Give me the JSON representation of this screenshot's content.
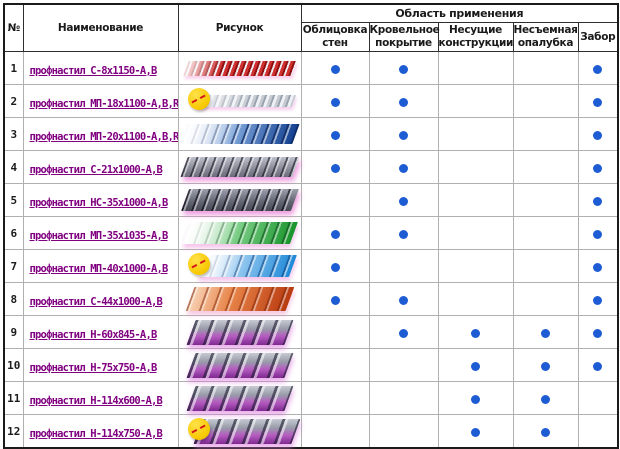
{
  "table": {
    "columns": {
      "number": "№",
      "name": "Наименование",
      "picture": "Рисунок",
      "applications_group": "Область применения",
      "applications": [
        "Облицовка стен",
        "Кровельное покрытие",
        "Несущие конструкции",
        "Несъемная опалубка",
        "Забор"
      ]
    },
    "rows": [
      {
        "number": "1",
        "name": "профнастил С-8х1150-А,В",
        "image": "red-wave",
        "has_new_badge": false,
        "applications": [
          true,
          true,
          false,
          false,
          true
        ]
      },
      {
        "number": "2",
        "name": "профнастил МП-18х1100-А,В,R",
        "image": "silver",
        "has_new_badge": true,
        "applications": [
          true,
          true,
          false,
          false,
          true
        ]
      },
      {
        "number": "3",
        "name": "профнастил МП-20х1100-А,В,R",
        "image": "blue-gradient",
        "has_new_badge": false,
        "applications": [
          true,
          true,
          false,
          false,
          true
        ]
      },
      {
        "number": "4",
        "name": "профнастил С-21х1000-А,В",
        "image": "gray-lilac",
        "has_new_badge": false,
        "applications": [
          true,
          true,
          false,
          false,
          true
        ]
      },
      {
        "number": "5",
        "name": "профнастил НС-35х1000-А,В",
        "image": "dark-gray",
        "has_new_badge": false,
        "applications": [
          false,
          true,
          false,
          false,
          true
        ]
      },
      {
        "number": "6",
        "name": "профнастил МП-35х1035-А,В",
        "image": "green-gradient",
        "has_new_badge": false,
        "applications": [
          true,
          true,
          false,
          false,
          true
        ]
      },
      {
        "number": "7",
        "name": "профнастил МП-40х1000-А,В",
        "image": "light-blue",
        "has_new_badge": true,
        "applications": [
          true,
          false,
          false,
          false,
          true
        ]
      },
      {
        "number": "8",
        "name": "профнастил С-44х1000-А,В",
        "image": "orange",
        "has_new_badge": false,
        "applications": [
          true,
          true,
          false,
          false,
          true
        ]
      },
      {
        "number": "9",
        "name": "профнастил Н-60х845-А,В",
        "image": "steel-purple",
        "has_new_badge": false,
        "applications": [
          false,
          true,
          true,
          true,
          true
        ]
      },
      {
        "number": "10",
        "name": "профнастил Н-75х750-А,В",
        "image": "steel-purple",
        "has_new_badge": false,
        "applications": [
          false,
          false,
          true,
          true,
          true
        ]
      },
      {
        "number": "11",
        "name": "профнастил Н-114х600-А,В",
        "image": "steel-purple",
        "has_new_badge": false,
        "applications": [
          false,
          false,
          true,
          true,
          false
        ]
      },
      {
        "number": "12",
        "name": "профнастил Н-114х750-А,В",
        "image": "steel-purple",
        "has_new_badge": true,
        "applications": [
          false,
          false,
          true,
          true,
          false
        ]
      }
    ]
  },
  "colors": {
    "application_dot": "#1d5cd3",
    "product_link": "#800080",
    "new_badge": "#f7c800",
    "new_badge_mark": "#d41818",
    "header_text": "#1a1a1a"
  }
}
